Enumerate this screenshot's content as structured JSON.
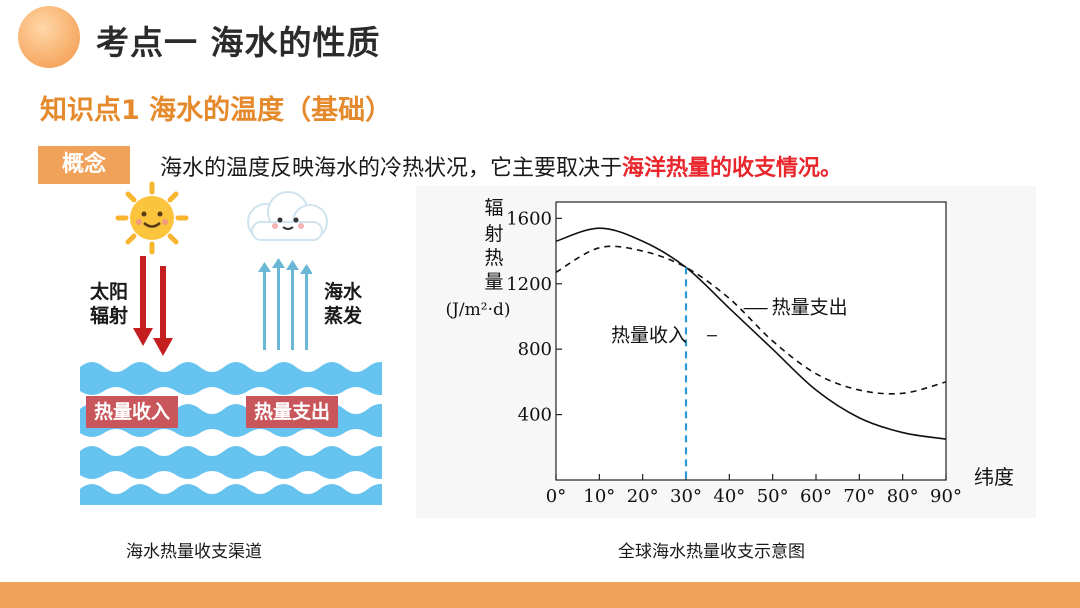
{
  "header": {
    "title": "考点一  海水的性质",
    "subtitle": "知识点1 海水的温度（基础）"
  },
  "concept": {
    "badge": "概念",
    "text": "海水的温度反映海水的冷热状况，它主要取决于",
    "highlight": "海洋热量的收支情况。"
  },
  "left_figure": {
    "solar_label_line1": "太阳",
    "solar_label_line2": "辐射",
    "evap_label_line1": "海水",
    "evap_label_line2": "蒸发",
    "tag_in": "热量收入",
    "tag_out": "热量支出",
    "caption": "海水热量收支渠道",
    "colors": {
      "sun": "#f7b531",
      "red_arrow": "#c41e1e",
      "blue_arrow": "#6ab7d6",
      "wave": "#66c3ef",
      "tag": "#c9565a"
    }
  },
  "chart_data": {
    "type": "line",
    "title": "",
    "ylabel": [
      "辐",
      "射",
      "热",
      "量",
      "(J/m²·d)"
    ],
    "xlabel": "纬度",
    "xlim": [
      0,
      90
    ],
    "ylim": [
      0,
      1700
    ],
    "x_ticks": [
      "0°",
      "10°",
      "20°",
      "30°",
      "40°",
      "50°",
      "60°",
      "70°",
      "80°",
      "90°"
    ],
    "x_tick_values": [
      0,
      10,
      20,
      30,
      40,
      50,
      60,
      70,
      80,
      90
    ],
    "y_ticks": [
      "400",
      "800",
      "1200",
      "1600"
    ],
    "y_tick_values": [
      400,
      800,
      1200,
      1600
    ],
    "series": [
      {
        "name": "热量收入",
        "style": "solid",
        "x": [
          0,
          10,
          20,
          30,
          40,
          50,
          60,
          70,
          80,
          90
        ],
        "y": [
          1460,
          1540,
          1460,
          1300,
          1050,
          800,
          550,
          380,
          290,
          250
        ]
      },
      {
        "name": "热量支出",
        "style": "dashed",
        "x": [
          0,
          10,
          20,
          30,
          40,
          50,
          60,
          70,
          80,
          90
        ],
        "y": [
          1270,
          1420,
          1400,
          1300,
          1110,
          850,
          650,
          550,
          530,
          600
        ]
      }
    ],
    "annotations": [
      {
        "text": "热量收入",
        "x": 33,
        "y": 870
      },
      {
        "text": "热量支出",
        "x": 47,
        "y": 1060
      }
    ],
    "vertical_marker": {
      "x": 30,
      "color": "#2a9bd6",
      "style": "dashed"
    },
    "grid": false,
    "caption": "全球海水热量收支示意图"
  }
}
